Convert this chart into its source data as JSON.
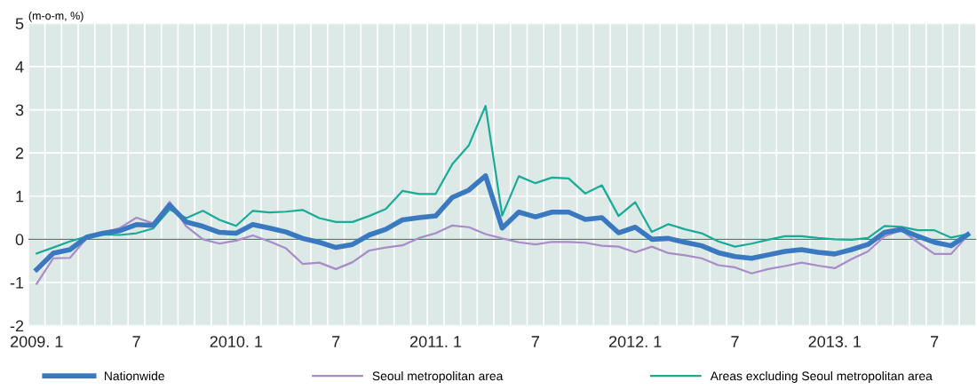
{
  "chart_data": {
    "type": "line",
    "ylabel": "(m-o-m, %)",
    "categories": [
      "2009. 1",
      null,
      null,
      null,
      null,
      null,
      "7",
      null,
      null,
      null,
      null,
      null,
      "2010. 1",
      null,
      null,
      null,
      null,
      null,
      "7",
      null,
      null,
      null,
      null,
      null,
      "2011. 1",
      null,
      null,
      null,
      null,
      null,
      "7",
      null,
      null,
      null,
      null,
      null,
      "2012. 1",
      null,
      null,
      null,
      null,
      null,
      "7",
      null,
      null,
      null,
      null,
      null,
      "2013. 1",
      null,
      null,
      null,
      null,
      null,
      "7",
      null,
      null
    ],
    "series": [
      {
        "name": "Nationwide",
        "color": "#3a78c0",
        "values": [
          -0.7,
          -0.32,
          -0.24,
          0.05,
          0.14,
          0.2,
          0.34,
          0.32,
          0.79,
          0.4,
          0.3,
          0.16,
          0.14,
          0.34,
          0.26,
          0.17,
          0.02,
          -0.07,
          -0.19,
          -0.12,
          0.1,
          0.23,
          0.45,
          0.5,
          0.54,
          0.97,
          1.14,
          1.47,
          0.26,
          0.63,
          0.52,
          0.63,
          0.63,
          0.46,
          0.5,
          0.15,
          0.28,
          0.0,
          0.02,
          -0.07,
          -0.15,
          -0.31,
          -0.4,
          -0.44,
          -0.36,
          -0.28,
          -0.24,
          -0.3,
          -0.34,
          -0.24,
          -0.12,
          0.16,
          0.23,
          0.07,
          -0.07,
          -0.15,
          0.11
        ]
      },
      {
        "name": "Seoul metropolitan area",
        "color": "#a98bc8",
        "values": [
          -1.03,
          -0.44,
          -0.43,
          0.02,
          0.16,
          0.26,
          0.5,
          0.37,
          0.87,
          0.3,
          0.0,
          -0.1,
          -0.03,
          0.09,
          -0.05,
          -0.21,
          -0.57,
          -0.54,
          -0.69,
          -0.53,
          -0.26,
          -0.19,
          -0.14,
          0.03,
          0.14,
          0.32,
          0.28,
          0.12,
          0.02,
          -0.07,
          -0.12,
          -0.06,
          -0.06,
          -0.08,
          -0.15,
          -0.17,
          -0.3,
          -0.17,
          -0.32,
          -0.37,
          -0.44,
          -0.6,
          -0.65,
          -0.79,
          -0.69,
          -0.62,
          -0.54,
          -0.61,
          -0.67,
          -0.46,
          -0.28,
          0.07,
          0.21,
          -0.07,
          -0.34,
          -0.34,
          0.09
        ]
      },
      {
        "name": "Areas excluding Seoul metropolitan area",
        "color": "#1aab98",
        "values": [
          -0.33,
          -0.19,
          -0.05,
          0.06,
          0.11,
          0.1,
          0.14,
          0.25,
          0.69,
          0.49,
          0.66,
          0.45,
          0.31,
          0.66,
          0.62,
          0.64,
          0.68,
          0.49,
          0.4,
          0.4,
          0.54,
          0.7,
          1.12,
          1.05,
          1.05,
          1.74,
          2.18,
          3.09,
          0.55,
          1.46,
          1.3,
          1.43,
          1.41,
          1.06,
          1.25,
          0.54,
          0.86,
          0.17,
          0.35,
          0.23,
          0.14,
          -0.05,
          -0.17,
          -0.1,
          -0.01,
          0.07,
          0.07,
          0.03,
          0.0,
          -0.01,
          0.03,
          0.31,
          0.29,
          0.21,
          0.21,
          0.04,
          0.12
        ]
      }
    ],
    "ylim": [
      -2,
      5
    ],
    "yticks": [
      -2,
      -1,
      0,
      1,
      2,
      3,
      4,
      5
    ],
    "ref_lines": [
      {
        "axis": "y",
        "value": 0,
        "color": "#3b8a6e"
      }
    ],
    "grid": true,
    "legend": "bottom",
    "marker": "none",
    "line_style": "solid"
  }
}
